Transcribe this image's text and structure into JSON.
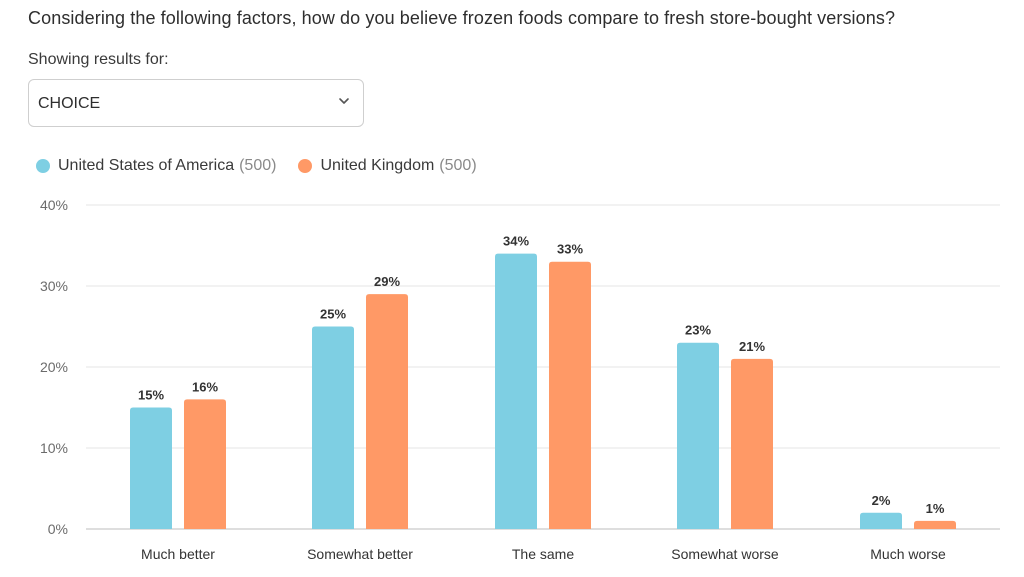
{
  "question": "Considering the following factors, how do you believe frozen foods compare to fresh store-bought versions?",
  "filter": {
    "label": "Showing results for:",
    "selected": "CHOICE"
  },
  "colors": {
    "usa": "#7ecfe3",
    "uk": "#ff9966",
    "grid": "#e6e6e6",
    "axis_text": "#6b6b6b"
  },
  "legend": [
    {
      "name": "United States of America",
      "count": "(500)",
      "color": "#7ecfe3"
    },
    {
      "name": "United Kingdom",
      "count": "(500)",
      "color": "#ff9966"
    }
  ],
  "chart_data": {
    "type": "bar",
    "categories": [
      "Much better",
      "Somewhat better",
      "The same",
      "Somewhat worse",
      "Much worse"
    ],
    "series": [
      {
        "name": "United States of America",
        "values": [
          15,
          25,
          34,
          23,
          2
        ],
        "labels": [
          "15%",
          "25%",
          "34%",
          "23%",
          "2%"
        ]
      },
      {
        "name": "United Kingdom",
        "values": [
          16,
          29,
          33,
          21,
          1
        ],
        "labels": [
          "16%",
          "29%",
          "33%",
          "21%",
          "1%"
        ]
      }
    ],
    "ylim": [
      0,
      40
    ],
    "yticks": [
      0,
      10,
      20,
      30,
      40
    ],
    "ytick_labels": [
      "0%",
      "10%",
      "20%",
      "30%",
      "40%"
    ],
    "grid": true,
    "legend_position": "top-left"
  }
}
